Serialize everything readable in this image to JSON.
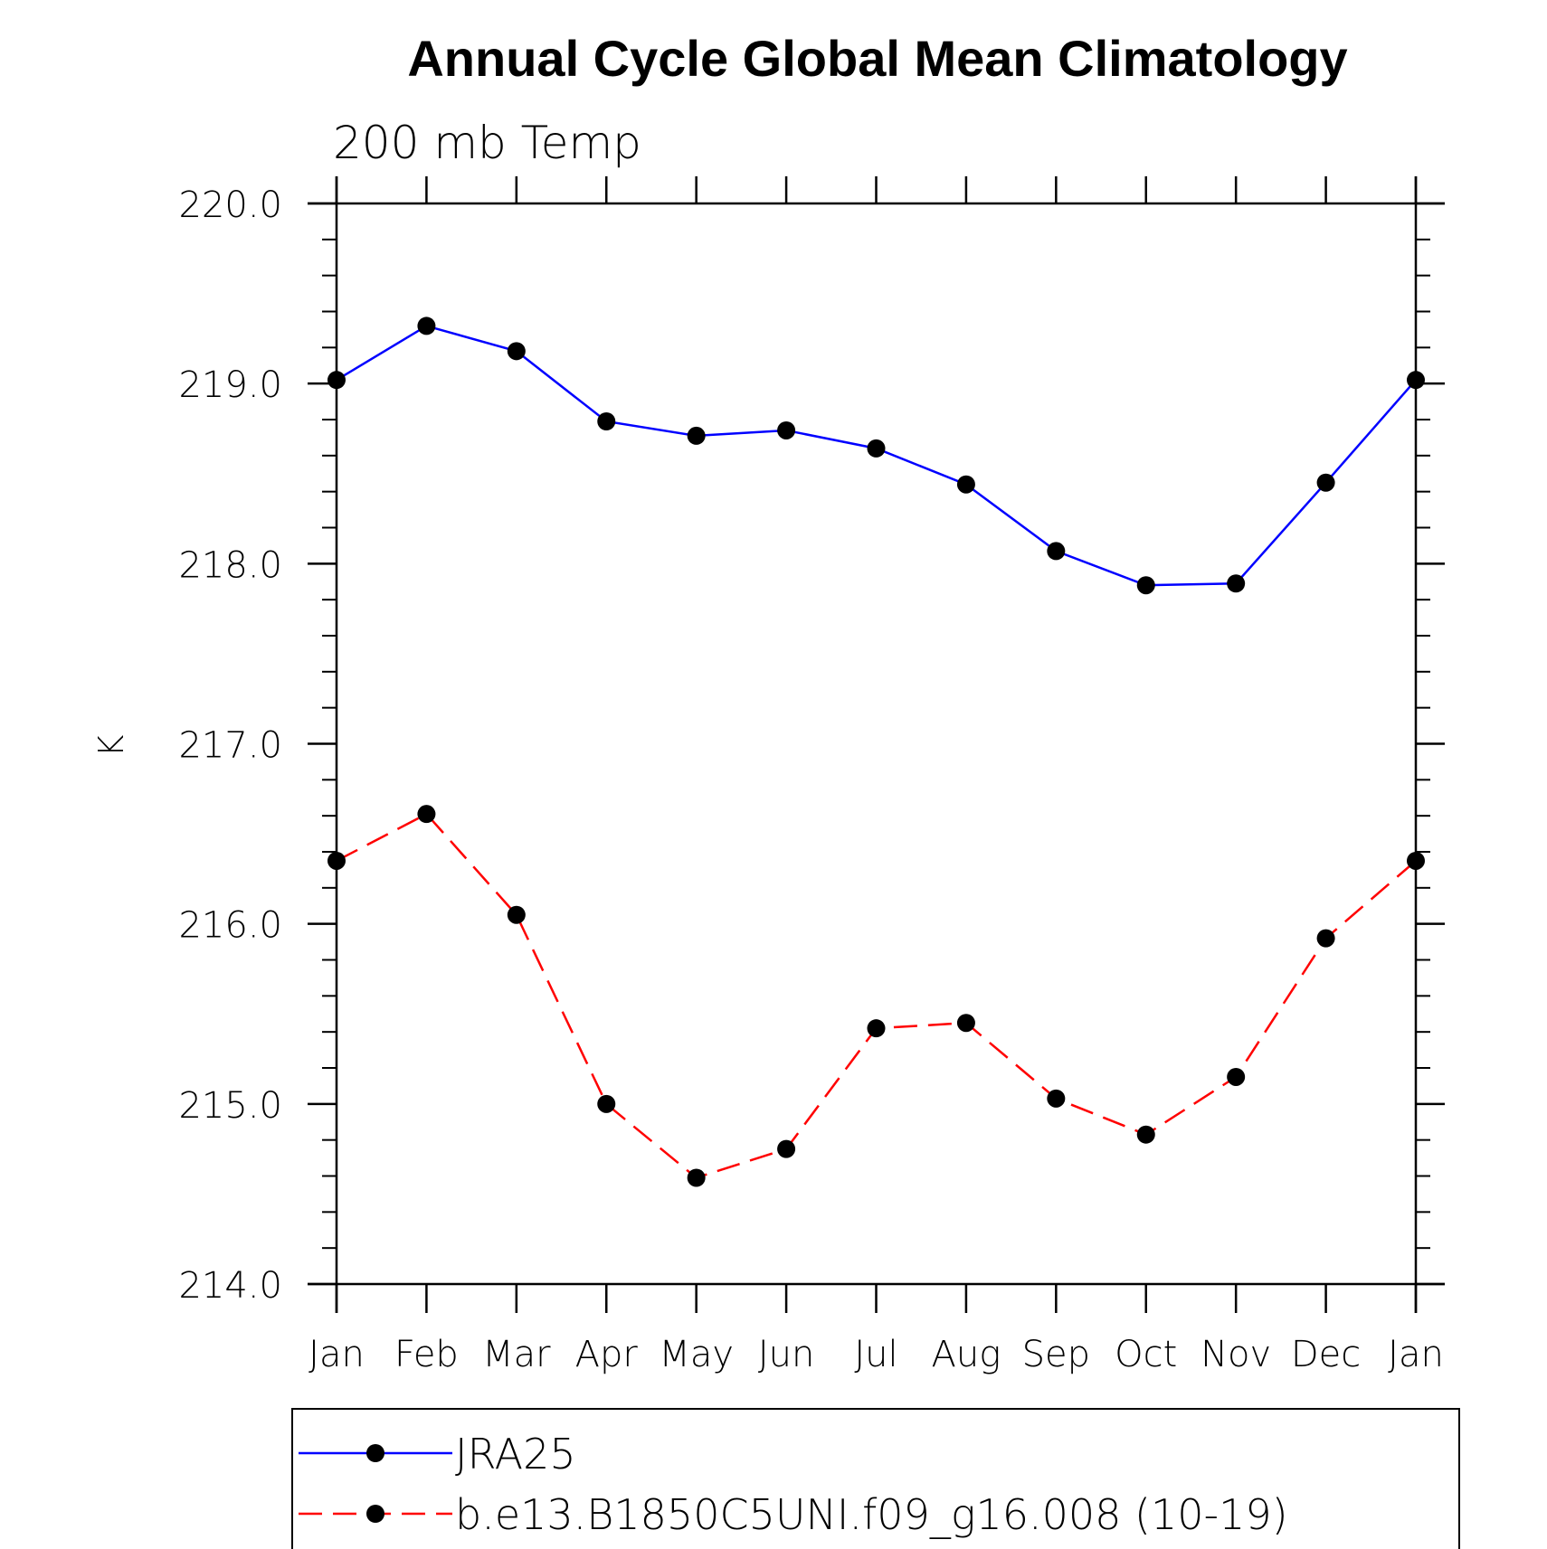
{
  "chart_data": {
    "type": "line",
    "title": "Annual Cycle Global Mean Climatology",
    "subtitle": "200 mb Temp",
    "xlabel": "",
    "ylabel": "K",
    "categories": [
      "Jan",
      "Feb",
      "Mar",
      "Apr",
      "May",
      "Jun",
      "Jul",
      "Aug",
      "Sep",
      "Oct",
      "Nov",
      "Dec",
      "Jan"
    ],
    "ylim": [
      214.0,
      220.0
    ],
    "yticks": [
      214.0,
      215.0,
      216.0,
      217.0,
      218.0,
      219.0,
      220.0
    ],
    "ytick_labels": [
      "214.0",
      "215.0",
      "216.0",
      "217.0",
      "218.0",
      "219.0",
      "220.0"
    ],
    "y_minor_step": 0.2,
    "grid": false,
    "legend_position": "bottom",
    "series": [
      {
        "name": "JRA25",
        "color": "#0000ff",
        "line_style": "solid",
        "marker": "filled-circle",
        "marker_color": "#000000",
        "values": [
          219.02,
          219.32,
          219.18,
          218.79,
          218.71,
          218.74,
          218.64,
          218.44,
          218.07,
          217.88,
          217.89,
          218.45,
          219.02
        ]
      },
      {
        "name": "b.e13.B1850C5UNI.f09_g16.008 (10-19)",
        "color": "#ff0000",
        "line_style": "dashed",
        "marker": "filled-circle",
        "marker_color": "#000000",
        "values": [
          216.35,
          216.61,
          216.05,
          215.0,
          214.59,
          214.75,
          215.42,
          215.45,
          215.03,
          214.83,
          215.15,
          215.92,
          216.35
        ]
      }
    ]
  }
}
